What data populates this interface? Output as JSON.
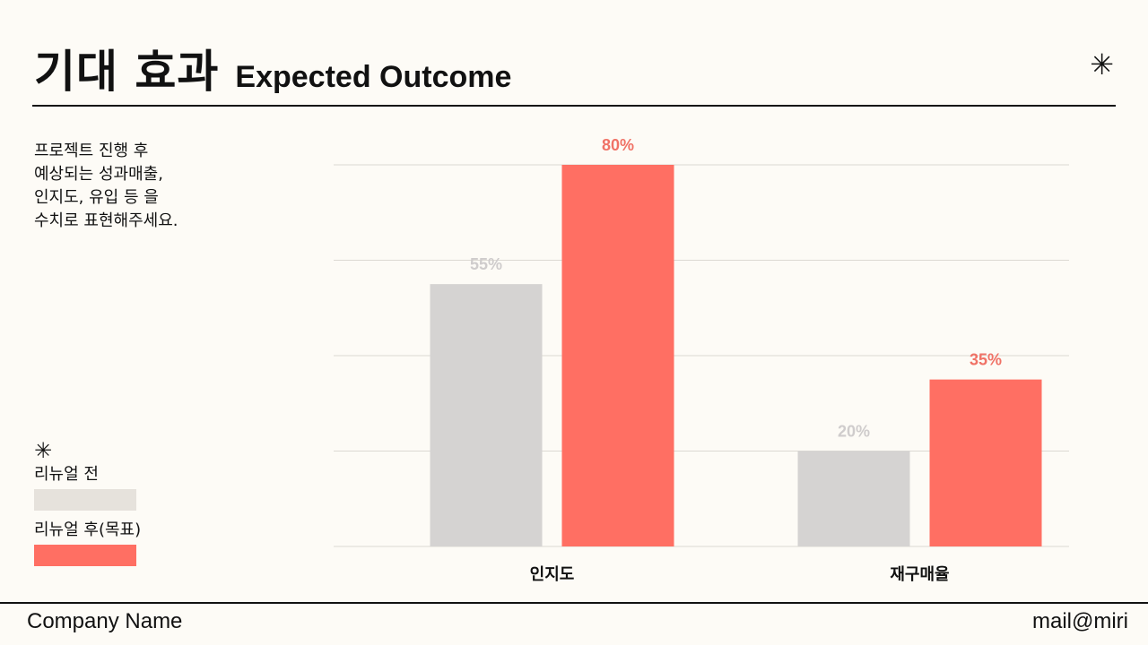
{
  "header": {
    "title_ko": "기대 효과",
    "title_en": "Expected Outcome",
    "star": "✳"
  },
  "description": {
    "lines": [
      "프로젝트 진행 후",
      "예상되는 성과매출,",
      "인지도, 유입 등 을",
      "수치로 표현해주세요."
    ]
  },
  "legend": {
    "star": "✳",
    "before_label": "리뉴얼 전",
    "after_label": "리뉴얼 후(목표)"
  },
  "colors": {
    "before": "#d5d3d2",
    "after": "#ff6f63",
    "before_label": "#cfcccc",
    "after_label": "#f07266",
    "grid": "#dcd9d3"
  },
  "chart_data": {
    "type": "bar",
    "categories": [
      "인지도",
      "재구매율"
    ],
    "series": [
      {
        "name": "리뉴얼 전",
        "values": [
          55,
          20
        ],
        "labels": [
          "55%",
          "20%"
        ]
      },
      {
        "name": "리뉴얼 후(목표)",
        "values": [
          80,
          35
        ],
        "labels": [
          "80%",
          "35%"
        ]
      }
    ],
    "ylim": [
      0,
      80
    ],
    "grid": true,
    "legend": "left"
  },
  "footer": {
    "company": "Company Name",
    "mail": "mail@miri"
  }
}
